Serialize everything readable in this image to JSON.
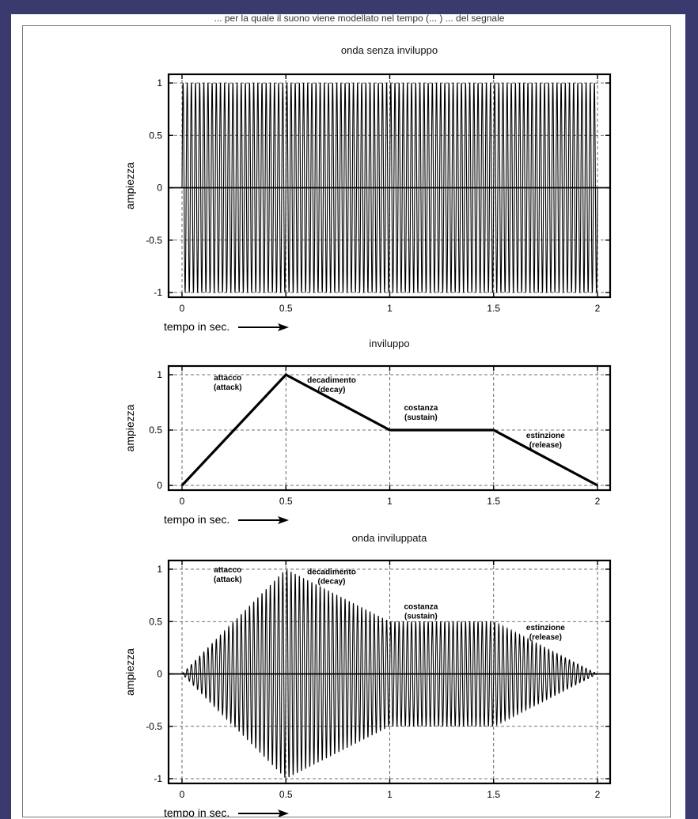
{
  "page": {
    "header_fragment": "... per la quale il suono viene modellato nel tempo (... ) ... del segnale"
  },
  "chart_data": [
    {
      "type": "line",
      "title": "onda senza inviluppo",
      "xlabel": "tempo in sec.",
      "ylabel": "ampiezza",
      "xlim": [
        0,
        2
      ],
      "ylim": [
        -1,
        1
      ],
      "xticks": [
        0,
        0.5,
        1,
        1.5,
        2
      ],
      "xtick_labels": [
        "0",
        "0.5",
        "1",
        "1.5",
        "2"
      ],
      "yticks": [
        -1,
        -0.5,
        0,
        0.5,
        1
      ],
      "ytick_labels": [
        "-1",
        "-0.5",
        "0",
        "0.5",
        "1"
      ],
      "grid": true,
      "series": [
        {
          "cycles": 100,
          "amplitude": 1,
          "shape": "sine",
          "envelope": [
            [
              0,
              1
            ],
            [
              2,
              1
            ]
          ]
        }
      ],
      "annotations": []
    },
    {
      "type": "line",
      "title": "inviluppo",
      "xlabel": "tempo in sec.",
      "ylabel": "ampiezza",
      "xlim": [
        0,
        2
      ],
      "ylim": [
        0,
        1
      ],
      "xticks": [
        0,
        0.5,
        1,
        1.5,
        2
      ],
      "xtick_labels": [
        "0",
        "0.5",
        "1",
        "1.5",
        "2"
      ],
      "yticks": [
        0,
        0.5,
        1
      ],
      "ytick_labels": [
        "0",
        "0.5",
        "1"
      ],
      "grid": true,
      "series": [
        {
          "x": [
            0,
            0.5,
            1,
            1.5,
            2
          ],
          "y": [
            0,
            1,
            0.5,
            0.5,
            0
          ]
        }
      ],
      "annotations": [
        {
          "text": [
            "attacco",
            "(attack)"
          ],
          "x": 0.22,
          "y": 0.95
        },
        {
          "text": [
            "decadimento",
            "(decay)"
          ],
          "x": 0.72,
          "y": 0.93
        },
        {
          "text": [
            "costanza",
            "(sustain)"
          ],
          "x": 1.15,
          "y": 0.68
        },
        {
          "text": [
            "estinzione",
            "(release)"
          ],
          "x": 1.75,
          "y": 0.43
        }
      ]
    },
    {
      "type": "line",
      "title": "onda inviluppata",
      "xlabel": "tempo in sec.",
      "ylabel": "ampiezza",
      "xlim": [
        0,
        2
      ],
      "ylim": [
        -1,
        1
      ],
      "xticks": [
        0,
        0.5,
        1,
        1.5,
        2
      ],
      "xtick_labels": [
        "0",
        "0.5",
        "1",
        "1.5",
        "2"
      ],
      "yticks": [
        -1,
        -0.5,
        0,
        0.5,
        1
      ],
      "ytick_labels": [
        "-1",
        "-0.5",
        "0",
        "0.5",
        "1"
      ],
      "grid": true,
      "series": [
        {
          "cycles": 100,
          "amplitude": 1,
          "shape": "sine",
          "envelope": [
            [
              0,
              0
            ],
            [
              0.5,
              1
            ],
            [
              1,
              0.5
            ],
            [
              1.5,
              0.5
            ],
            [
              2,
              0
            ]
          ]
        }
      ],
      "annotations": [
        {
          "text": [
            "attacco",
            "(attack)"
          ],
          "x": 0.22,
          "y": 0.97
        },
        {
          "text": [
            "decadimento",
            "(decay)"
          ],
          "x": 0.72,
          "y": 0.95
        },
        {
          "text": [
            "costanza",
            "(sustain)"
          ],
          "x": 1.15,
          "y": 0.62
        },
        {
          "text": [
            "estinzione",
            "(release)"
          ],
          "x": 1.75,
          "y": 0.42
        }
      ]
    }
  ]
}
